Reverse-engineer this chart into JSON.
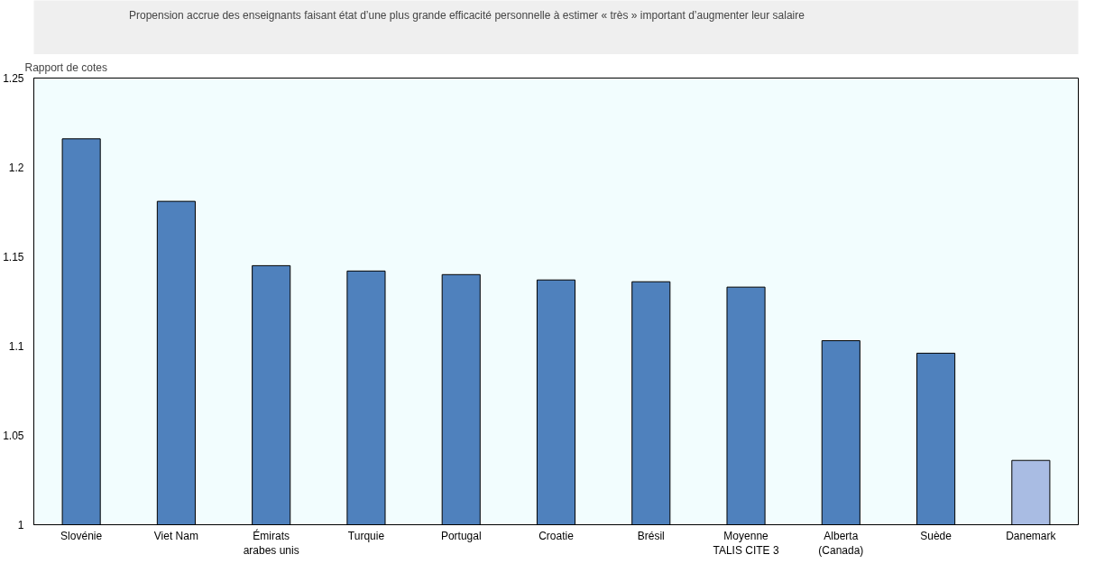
{
  "chart_data": {
    "type": "bar",
    "ylabel": "Rapport de cotes",
    "categories": [
      "Slovénie",
      "Viet Nam",
      "Émirats\narabes unis",
      "Turquie",
      "Portugal",
      "Croatie",
      "Brésil",
      "Moyenne\nTALIS CITE 3",
      "Alberta\n(Canada)",
      "Suède",
      "Danemark"
    ],
    "series": [
      {
        "name": "Propension accrue des enseignants faisant état d’une plus grande efficacité personnelle à estimer « très » important d’augmenter leur salaire",
        "colors": [
          "#4f81bd",
          "#4f81bd",
          "#4f81bd",
          "#4f81bd",
          "#4f81bd",
          "#4f81bd",
          "#4f81bd",
          "#4f81bd",
          "#4f81bd",
          "#4f81bd",
          "#a9bce3"
        ],
        "values": [
          1.216,
          1.181,
          1.145,
          1.142,
          1.14,
          1.137,
          1.136,
          1.133,
          1.103,
          1.096,
          1.036
        ]
      }
    ],
    "ylim": [
      1,
      1.25
    ],
    "yticks": [
      1,
      1.05,
      1.1,
      1.15,
      1.2,
      1.25
    ],
    "legend": "top"
  }
}
